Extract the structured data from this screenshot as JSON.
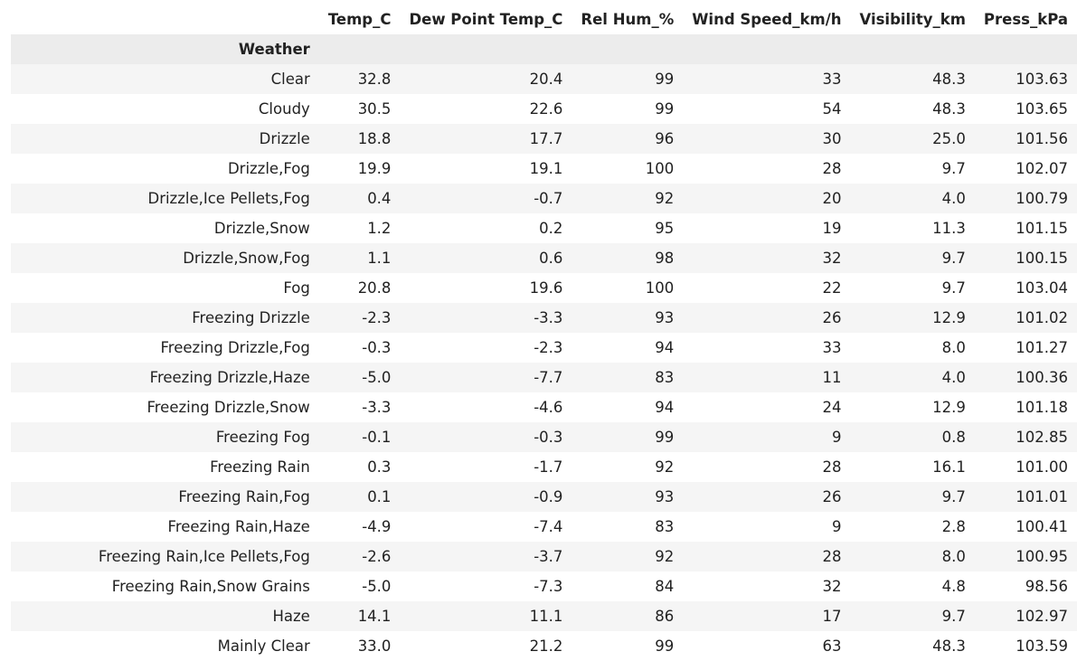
{
  "table": {
    "index_name": "Weather",
    "columns": [
      "Temp_C",
      "Dew Point Temp_C",
      "Rel Hum_%",
      "Wind Speed_km/h",
      "Visibility_km",
      "Press_kPa"
    ],
    "rows": [
      {
        "index": "Clear",
        "values": [
          "32.8",
          "20.4",
          "99",
          "33",
          "48.3",
          "103.63"
        ]
      },
      {
        "index": "Cloudy",
        "values": [
          "30.5",
          "22.6",
          "99",
          "54",
          "48.3",
          "103.65"
        ]
      },
      {
        "index": "Drizzle",
        "values": [
          "18.8",
          "17.7",
          "96",
          "30",
          "25.0",
          "101.56"
        ]
      },
      {
        "index": "Drizzle,Fog",
        "values": [
          "19.9",
          "19.1",
          "100",
          "28",
          "9.7",
          "102.07"
        ]
      },
      {
        "index": "Drizzle,Ice Pellets,Fog",
        "values": [
          "0.4",
          "-0.7",
          "92",
          "20",
          "4.0",
          "100.79"
        ]
      },
      {
        "index": "Drizzle,Snow",
        "values": [
          "1.2",
          "0.2",
          "95",
          "19",
          "11.3",
          "101.15"
        ]
      },
      {
        "index": "Drizzle,Snow,Fog",
        "values": [
          "1.1",
          "0.6",
          "98",
          "32",
          "9.7",
          "100.15"
        ]
      },
      {
        "index": "Fog",
        "values": [
          "20.8",
          "19.6",
          "100",
          "22",
          "9.7",
          "103.04"
        ]
      },
      {
        "index": "Freezing Drizzle",
        "values": [
          "-2.3",
          "-3.3",
          "93",
          "26",
          "12.9",
          "101.02"
        ]
      },
      {
        "index": "Freezing Drizzle,Fog",
        "values": [
          "-0.3",
          "-2.3",
          "94",
          "33",
          "8.0",
          "101.27"
        ]
      },
      {
        "index": "Freezing Drizzle,Haze",
        "values": [
          "-5.0",
          "-7.7",
          "83",
          "11",
          "4.0",
          "100.36"
        ]
      },
      {
        "index": "Freezing Drizzle,Snow",
        "values": [
          "-3.3",
          "-4.6",
          "94",
          "24",
          "12.9",
          "101.18"
        ]
      },
      {
        "index": "Freezing Fog",
        "values": [
          "-0.1",
          "-0.3",
          "99",
          "9",
          "0.8",
          "102.85"
        ]
      },
      {
        "index": "Freezing Rain",
        "values": [
          "0.3",
          "-1.7",
          "92",
          "28",
          "16.1",
          "101.00"
        ]
      },
      {
        "index": "Freezing Rain,Fog",
        "values": [
          "0.1",
          "-0.9",
          "93",
          "26",
          "9.7",
          "101.01"
        ]
      },
      {
        "index": "Freezing Rain,Haze",
        "values": [
          "-4.9",
          "-7.4",
          "83",
          "9",
          "2.8",
          "100.41"
        ]
      },
      {
        "index": "Freezing Rain,Ice Pellets,Fog",
        "values": [
          "-2.6",
          "-3.7",
          "92",
          "28",
          "8.0",
          "100.95"
        ]
      },
      {
        "index": "Freezing Rain,Snow Grains",
        "values": [
          "-5.0",
          "-7.3",
          "84",
          "32",
          "4.8",
          "98.56"
        ]
      },
      {
        "index": "Haze",
        "values": [
          "14.1",
          "11.1",
          "86",
          "17",
          "9.7",
          "102.97"
        ]
      },
      {
        "index": "Mainly Clear",
        "values": [
          "33.0",
          "21.2",
          "99",
          "63",
          "48.3",
          "103.59"
        ]
      }
    ]
  },
  "colors": {
    "stripe": "#f5f5f5",
    "index_header_bg": "#ececec",
    "text": "#222222"
  }
}
